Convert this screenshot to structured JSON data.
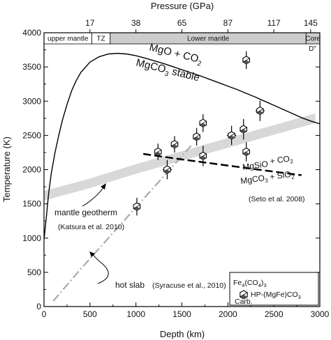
{
  "chart_data": {
    "type": "scatter",
    "title": "",
    "xlabel": "Depth (km)",
    "ylabel": "Temperature (K)",
    "top_axis_label": "Pressure (GPa)",
    "xlim": [
      0,
      3000
    ],
    "ylim": [
      0,
      4000
    ],
    "x_ticks": [
      0,
      500,
      1000,
      1500,
      2000,
      2500,
      3000
    ],
    "y_ticks": [
      0,
      500,
      1000,
      1500,
      2000,
      2500,
      3000,
      3500,
      4000
    ],
    "top_ticks": [
      {
        "depth": 500,
        "label": "17"
      },
      {
        "depth": 1000,
        "label": "38"
      },
      {
        "depth": 1500,
        "label": "65"
      },
      {
        "depth": 2000,
        "label": "87"
      },
      {
        "depth": 2500,
        "label": "117"
      },
      {
        "depth": 2900,
        "label": "145"
      }
    ],
    "grid": false,
    "regions": [
      {
        "label": "upper mantle",
        "from": 0,
        "to": 520,
        "shade": "#ffffff"
      },
      {
        "label": "TZ",
        "from": 520,
        "to": 720,
        "shade": "#ffffff"
      },
      {
        "label": "Lower mantle",
        "from": 720,
        "to": 2850,
        "shade": "#cccccc"
      },
      {
        "label": "Core",
        "from": 2850,
        "to": 3000,
        "shade": "#cccccc"
      }
    ],
    "region_extra_label": "D\"",
    "curves": {
      "decarbonation_curve": {
        "x": [
          0,
          25,
          50,
          80,
          120,
          160,
          200,
          250,
          300,
          350,
          400,
          500,
          600,
          700,
          800,
          900,
          1000,
          1100,
          1200,
          1300,
          1400,
          1500,
          1600,
          1700,
          1800,
          1900,
          2000,
          2100,
          2200,
          2300,
          2400,
          2500,
          2600,
          2700,
          2800,
          2900,
          3000
        ],
        "y": [
          980,
          1300,
          1650,
          1950,
          2250,
          2500,
          2720,
          2950,
          3150,
          3300,
          3420,
          3570,
          3650,
          3690,
          3700,
          3690,
          3665,
          3630,
          3590,
          3550,
          3505,
          3460,
          3415,
          3370,
          3320,
          3270,
          3220,
          3170,
          3115,
          3060,
          3000,
          2940,
          2880,
          2820,
          2760,
          2710,
          2670
        ]
      },
      "mgsio3_boundary": {
        "x": [
          1080,
          1500,
          2000,
          2500,
          2800
        ],
        "y": [
          2230,
          2150,
          2060,
          1970,
          1920
        ]
      },
      "hot_slab": {
        "x": [
          100,
          400,
          700,
          1000,
          1300,
          1600
        ],
        "y": [
          80,
          550,
          1000,
          1450,
          1900,
          2350
        ]
      },
      "mantle_geotherm": {
        "x": [
          0,
          500,
          1000,
          1500,
          2000,
          2500,
          2950
        ],
        "y": [
          1620,
          1800,
          2010,
          2200,
          2390,
          2580,
          2750
        ],
        "band_half_width": 70
      }
    },
    "points": [
      {
        "x": 1010,
        "y": 1460,
        "xerr": 30,
        "yerr": 130
      },
      {
        "x": 1340,
        "y": 2000,
        "xerr": 50,
        "yerr": 140
      },
      {
        "x": 1240,
        "y": 2260,
        "xerr": 40,
        "yerr": 120
      },
      {
        "x": 1420,
        "y": 2370,
        "xerr": 40,
        "yerr": 120
      },
      {
        "x": 1660,
        "y": 2480,
        "xerr": 40,
        "yerr": 130
      },
      {
        "x": 1730,
        "y": 2680,
        "xerr": 40,
        "yerr": 130
      },
      {
        "x": 1730,
        "y": 2200,
        "xerr": 40,
        "yerr": 150
      },
      {
        "x": 2040,
        "y": 2500,
        "xerr": 50,
        "yerr": 140
      },
      {
        "x": 2170,
        "y": 2590,
        "xerr": 40,
        "yerr": 150
      },
      {
        "x": 2200,
        "y": 2260,
        "xerr": 40,
        "yerr": 140
      },
      {
        "x": 2350,
        "y": 2860,
        "xerr": 50,
        "yerr": 150
      },
      {
        "x": 2200,
        "y": 3600,
        "xerr": 40,
        "yerr": 130
      }
    ],
    "annotations": {
      "mgo_line1": "MgO + CO",
      "mgo_sub1": "2",
      "mgco3_pre": "MgCO",
      "mgco3_sub": "3",
      "mgco3_post": " stable",
      "mgsio3_pre": "MgSiO",
      "mgsio3_sub1": "3",
      "mgsio3_mid": " + CO",
      "mgsio3_sub2": "2",
      "mgco3sio2_pre": "MgCO",
      "mgco3sio2_sub1": "3",
      "mgco3sio2_mid": " + SiO",
      "mgco3sio2_sub2": "2",
      "seto": "(Seto et al. 2008)",
      "geotherm_1": "mantle geotherm",
      "geotherm_2": "(Katsura et al. 2010)",
      "hot_slab": "hot slab",
      "syracuse": "(Syracuse et al., 2010)"
    },
    "legend": {
      "title_pre": "Fe",
      "title_sub1": "4",
      "title_mid1": "(CO",
      "title_sub2": "4",
      "title_mid2": ")",
      "title_sub3": "3",
      "entry_pre": "HP-(MgFe)CO",
      "entry_sub": "3",
      "entry_label2": "Carb.",
      "placement": "bottom-right"
    }
  }
}
